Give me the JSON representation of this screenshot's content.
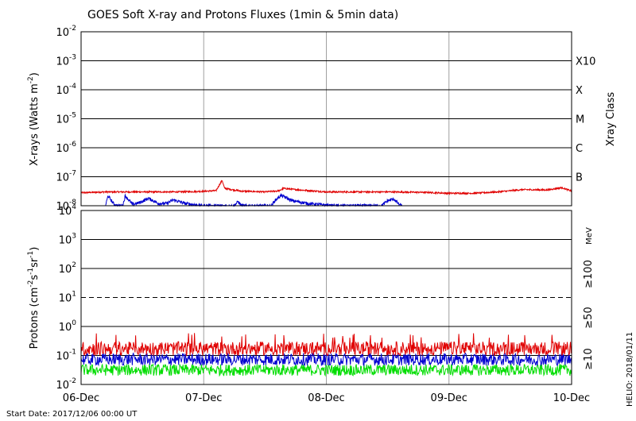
{
  "title": "GOES Soft X-ray and Protons Fluxes   (1min & 5min data)",
  "footer": {
    "start_date": "Start Date: 2017/12/06 00:00 UT",
    "credit": "HELIO: 2018/01/11"
  },
  "chart_data": [
    {
      "type": "line",
      "name": "xray-panel",
      "ylabel": "X-rays (Watts m-2)",
      "y_scale": "log",
      "ylim": [
        1e-08,
        0.01
      ],
      "y_tick_labels": [
        {
          "base": "10",
          "exp": "-2"
        },
        {
          "base": "10",
          "exp": "-3"
        },
        {
          "base": "10",
          "exp": "-4"
        },
        {
          "base": "10",
          "exp": "-5"
        },
        {
          "base": "10",
          "exp": "-6"
        },
        {
          "base": "10",
          "exp": "-7"
        },
        {
          "base": "10",
          "exp": "-8"
        }
      ],
      "right_axis_title": "Xray Class",
      "classes": [
        {
          "label": "X10",
          "flux": 0.001
        },
        {
          "label": "X",
          "flux": 0.0001
        },
        {
          "label": "M",
          "flux": 1e-05
        },
        {
          "label": "C",
          "flux": 1e-06
        },
        {
          "label": "B",
          "flux": 1e-07
        }
      ],
      "grid": true,
      "x_day_range": [
        0,
        4
      ],
      "series": [
        {
          "color": "#e00000",
          "points": [
            [
              0.0,
              2.8e-08
            ],
            [
              0.2,
              3e-08
            ],
            [
              0.5,
              3e-08
            ],
            [
              0.8,
              3e-08
            ],
            [
              0.95,
              3.1e-08
            ],
            [
              1.1,
              3.3e-08
            ],
            [
              1.15,
              7.5e-08
            ],
            [
              1.17,
              4e-08
            ],
            [
              1.3,
              3.2e-08
            ],
            [
              1.5,
              3e-08
            ],
            [
              1.62,
              3.3e-08
            ],
            [
              1.65,
              4e-08
            ],
            [
              1.75,
              3.6e-08
            ],
            [
              2.0,
              3e-08
            ],
            [
              2.5,
              3e-08
            ],
            [
              2.8,
              2.9e-08
            ],
            [
              3.0,
              2.7e-08
            ],
            [
              3.2,
              2.7e-08
            ],
            [
              3.4,
              3e-08
            ],
            [
              3.6,
              3.6e-08
            ],
            [
              3.8,
              3.5e-08
            ],
            [
              3.92,
              4.2e-08
            ],
            [
              4.0,
              3.2e-08
            ]
          ]
        },
        {
          "color": "#0000d0",
          "points": [
            [
              0.2,
              1.05e-08
            ],
            [
              0.22,
              2.2e-08
            ],
            [
              0.27,
              1.1e-08
            ],
            [
              0.3,
              1e-08
            ],
            [
              0.34,
              1e-08
            ],
            [
              0.36,
              2.2e-08
            ],
            [
              0.42,
              1.1e-08
            ],
            [
              0.48,
              1.3e-08
            ],
            [
              0.55,
              1.8e-08
            ],
            [
              0.63,
              1.2e-08
            ],
            [
              0.7,
              1.2e-08
            ],
            [
              0.75,
              1.6e-08
            ],
            [
              0.85,
              1.2e-08
            ],
            [
              0.95,
              1.05e-08
            ],
            [
              1.0,
              1e-08
            ],
            [
              1.25,
              1e-08
            ],
            [
              1.28,
              1.4e-08
            ],
            [
              1.31,
              1e-08
            ],
            [
              1.55,
              1e-08
            ],
            [
              1.58,
              1.5e-08
            ],
            [
              1.63,
              2.3e-08
            ],
            [
              1.72,
              1.5e-08
            ],
            [
              1.85,
              1.2e-08
            ],
            [
              2.0,
              1.05e-08
            ],
            [
              2.05,
              1e-08
            ],
            [
              2.45,
              1e-08
            ],
            [
              2.5,
              1.5e-08
            ],
            [
              2.55,
              1.7e-08
            ],
            [
              2.6,
              1.05e-08
            ],
            [
              2.62,
              1e-08
            ]
          ]
        }
      ]
    },
    {
      "type": "line",
      "name": "proton-panel",
      "ylabel": "Protons (cm-2s-1sr-1)",
      "y_scale": "log",
      "ylim": [
        0.01,
        10000
      ],
      "y_tick_labels": [
        {
          "base": "10",
          "exp": "4"
        },
        {
          "base": "10",
          "exp": "3"
        },
        {
          "base": "10",
          "exp": "2"
        },
        {
          "base": "10",
          "exp": "1"
        },
        {
          "base": "10",
          "exp": "0"
        },
        {
          "base": "10",
          "exp": "-1"
        },
        {
          "base": "10",
          "exp": "-2"
        }
      ],
      "unit_label": "MeV",
      "threshold_line": 10,
      "grid": true,
      "x_day_range": [
        0,
        4
      ],
      "series": [
        {
          "name": "≥10",
          "color": "#e00000",
          "typical": 0.15,
          "range": [
            0.1,
            0.3
          ]
        },
        {
          "name": "≥50",
          "color": "#0000d0",
          "typical": 0.07,
          "range": [
            0.045,
            0.12
          ]
        },
        {
          "name": "≥100",
          "color": "#00dd00",
          "typical": 0.03,
          "range": [
            0.02,
            0.05
          ]
        }
      ]
    }
  ],
  "x_tick_labels": [
    "06-Dec",
    "07-Dec",
    "08-Dec",
    "09-Dec",
    "10-Dec"
  ]
}
